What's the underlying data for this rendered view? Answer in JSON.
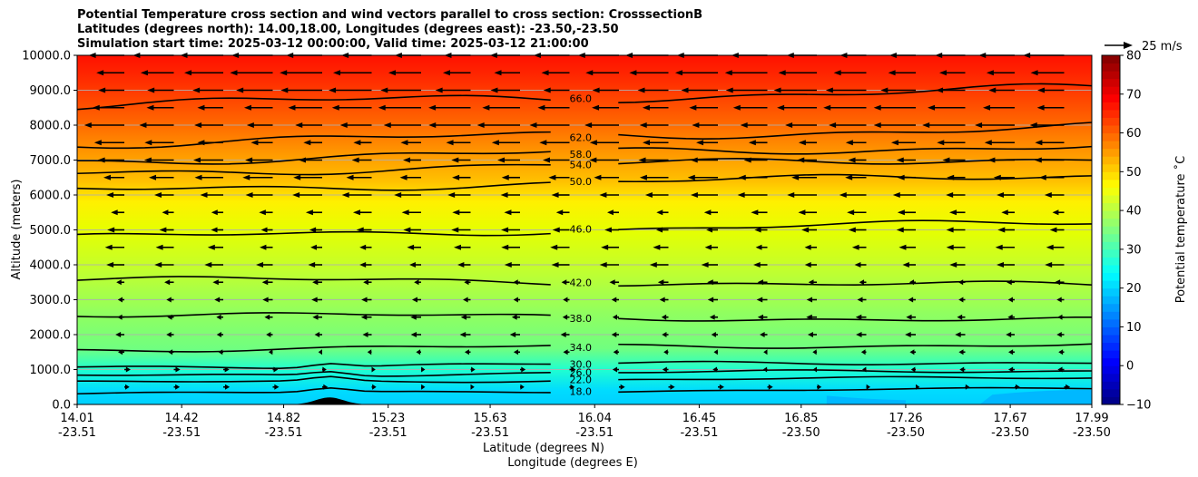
{
  "chart_data": {
    "type": "contour",
    "title_lines": [
      "Potential Temperature cross section and wind vectors parallel to cross section: CrosssectionB",
      "Latitudes (degrees north): 14.00,18.00, Longitudes (degrees east): -23.50,-23.50",
      "Simulation start time: 2025-03-12 00:00:00, Valid time: 2025-03-12 21:00:00"
    ],
    "xlabel": "Latitude (degrees N)",
    "xlabel2": "Longitude (degrees E)",
    "ylabel": "Altitude (meters)",
    "xlim": [
      14.01,
      17.99
    ],
    "ylim": [
      0,
      10000
    ],
    "x_ticks": [
      {
        "lat": "14.01",
        "lon": "-23.51"
      },
      {
        "lat": "14.42",
        "lon": "-23.51"
      },
      {
        "lat": "14.82",
        "lon": "-23.51"
      },
      {
        "lat": "15.23",
        "lon": "-23.51"
      },
      {
        "lat": "15.63",
        "lon": "-23.51"
      },
      {
        "lat": "16.04",
        "lon": "-23.51"
      },
      {
        "lat": "16.45",
        "lon": "-23.51"
      },
      {
        "lat": "16.85",
        "lon": "-23.50"
      },
      {
        "lat": "17.26",
        "lon": "-23.50"
      },
      {
        "lat": "17.67",
        "lon": "-23.50"
      },
      {
        "lat": "17.99",
        "lon": "-23.50"
      }
    ],
    "y_ticks": [
      "0.0",
      "1000.0",
      "2000.0",
      "3000.0",
      "4000.0",
      "5000.0",
      "6000.0",
      "7000.0",
      "8000.0",
      "9000.0",
      "10000.0"
    ],
    "grid": true,
    "colorbar": {
      "label": "Potential temperature $^\\circ$C",
      "label_text": "Potential temperature ˚C",
      "min": -10,
      "max": 80,
      "ticks": [
        "−10",
        "0",
        "10",
        "20",
        "30",
        "40",
        "50",
        "60",
        "70",
        "80"
      ],
      "colormap": "jet"
    },
    "quiver_key": {
      "label": "25 m/s",
      "speed": 25
    },
    "contour_levels": [
      {
        "label": "18.0",
        "altitude": 380
      },
      {
        "label": "22.0",
        "altitude": 700
      },
      {
        "label": "26.0",
        "altitude": 900
      },
      {
        "label": "30.0",
        "altitude": 1150
      },
      {
        "label": "34.0",
        "altitude": 1650
      },
      {
        "label": "38.0",
        "altitude": 2500
      },
      {
        "label": "42.0",
        "altitude": 3500
      },
      {
        "label": "46.0",
        "altitude": 5000
      },
      {
        "label": "50.0",
        "altitude": 6350
      },
      {
        "label": "54.0",
        "altitude": 6850
      },
      {
        "label": "58.0",
        "altitude": 7200
      },
      {
        "label": "62.0",
        "altitude": 7700
      },
      {
        "label": "66.0",
        "altitude": 8800
      }
    ],
    "terrain_peak": {
      "lat": 15.0,
      "height": 200
    }
  }
}
